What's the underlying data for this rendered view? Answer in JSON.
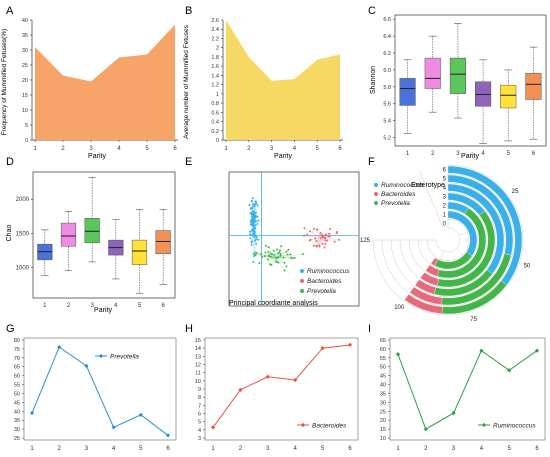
{
  "panels": {
    "A": {
      "letter": "A",
      "type": "area",
      "color": "#F7A468",
      "ylabel": "Frequency of Mummified Fetuses(%)",
      "xlabel": "Parity",
      "x": [
        1,
        2,
        3,
        4,
        5,
        6
      ],
      "values": [
        31,
        21.5,
        19.5,
        27.5,
        28.5,
        38.5
      ],
      "ylim": [
        0,
        40
      ]
    },
    "B": {
      "letter": "B",
      "type": "area",
      "color": "#F6D965",
      "ylabel": "Average number of Mummified Fetuses",
      "xlabel": "Parity",
      "x": [
        1,
        2,
        3,
        4,
        5,
        6
      ],
      "values": [
        2.6,
        1.8,
        1.28,
        1.32,
        1.74,
        1.86
      ],
      "ylim": [
        0,
        2.6
      ]
    },
    "C": {
      "letter": "C",
      "type": "boxplot",
      "ylabel": "Shannon",
      "xlabel": "Parity",
      "categories": [
        "1",
        "2",
        "3",
        "4",
        "5",
        "6"
      ],
      "yticks": [
        5.2,
        5.4,
        5.6,
        5.8,
        6.0,
        6.2,
        6.4,
        6.6
      ],
      "ylim": [
        5.1,
        6.65
      ],
      "colors": [
        "#4A72D8",
        "#EE8CE3",
        "#5CC55C",
        "#8E64B9",
        "#FFE138",
        "#F29155"
      ],
      "boxes": [
        {
          "min": 5.25,
          "q1": 5.58,
          "median": 5.78,
          "q3": 5.9,
          "max": 6.12
        },
        {
          "min": 5.5,
          "q1": 5.78,
          "median": 5.9,
          "q3": 6.14,
          "max": 6.4
        },
        {
          "min": 5.43,
          "q1": 5.72,
          "median": 5.95,
          "q3": 6.14,
          "max": 6.55
        },
        {
          "min": 5.13,
          "q1": 5.57,
          "median": 5.71,
          "q3": 5.86,
          "max": 6.12
        },
        {
          "min": 5.16,
          "q1": 5.55,
          "median": 5.7,
          "q3": 5.82,
          "max": 6.0
        },
        {
          "min": 5.18,
          "q1": 5.65,
          "median": 5.83,
          "q3": 5.96,
          "max": 6.27
        }
      ]
    },
    "D": {
      "letter": "D",
      "type": "boxplot",
      "ylabel": "Chao",
      "xlabel": "Parity",
      "categories": [
        "1",
        "2",
        "3",
        "4",
        "5",
        "6"
      ],
      "yticks": [
        1000,
        1500,
        2000
      ],
      "ylim": [
        550,
        2400
      ],
      "colors": [
        "#4A72D8",
        "#EE8CE3",
        "#5CC55C",
        "#8E64B9",
        "#FFE138",
        "#F29155"
      ],
      "boxes": [
        {
          "min": 880,
          "q1": 1110,
          "median": 1230,
          "q3": 1340,
          "max": 1550
        },
        {
          "min": 950,
          "q1": 1310,
          "median": 1460,
          "q3": 1650,
          "max": 1820
        },
        {
          "min": 1080,
          "q1": 1360,
          "median": 1530,
          "q3": 1720,
          "max": 2320
        },
        {
          "min": 830,
          "q1": 1180,
          "median": 1290,
          "q3": 1400,
          "max": 1700
        },
        {
          "min": 620,
          "q1": 1040,
          "median": 1240,
          "q3": 1400,
          "max": 1850
        },
        {
          "min": 750,
          "q1": 1200,
          "median": 1380,
          "q3": 1540,
          "max": 1850
        }
      ]
    },
    "E": {
      "letter": "E",
      "type": "scatter",
      "xlabel": "Principal coordiante analysis",
      "legend": [
        "Ruminococcus",
        "Bacteroides",
        "Prevotella"
      ],
      "colors": [
        "#3AAFE8",
        "#E56B7A",
        "#43B54A"
      ],
      "centroids": [
        [
          -0.62,
          0.22
        ],
        [
          0.42,
          0.02
        ],
        [
          -0.28,
          -0.28
        ]
      ],
      "spreads": [
        [
          0.05,
          0.38
        ],
        [
          0.28,
          0.12
        ],
        [
          0.3,
          0.16
        ]
      ],
      "counts": [
        90,
        40,
        45
      ],
      "xlim": [
        -1,
        1
      ],
      "ylim": [
        -1,
        1
      ]
    },
    "F": {
      "letter": "F",
      "type": "radial_bar",
      "title": "Enterotype",
      "legend": [
        "Ruminococcus",
        "Bacteroides",
        "Prevotella"
      ],
      "colors": [
        "#3AAFE8",
        "#E56B7A",
        "#43B54A"
      ],
      "rings": [
        "0",
        "1",
        "2",
        "3",
        "4",
        "5",
        "6"
      ],
      "ticks": [
        "25",
        "50",
        "75",
        "100",
        "125"
      ],
      "rings_data": [
        {
          "Ruminococcus": 0,
          "Bacteroides": 0,
          "Prevotella": 0
        },
        {
          "Ruminococcus": 57,
          "Bacteroides": 4,
          "Prevotella": 39
        },
        {
          "Ruminococcus": 15,
          "Bacteroides": 9,
          "Prevotella": 76
        },
        {
          "Ruminococcus": 24,
          "Bacteroides": 10.5,
          "Prevotella": 65.5
        },
        {
          "Ruminococcus": 59,
          "Bacteroides": 10,
          "Prevotella": 31
        },
        {
          "Ruminococcus": 48,
          "Bacteroides": 14,
          "Prevotella": 38
        },
        {
          "Ruminococcus": 59,
          "Bacteroides": 14.5,
          "Prevotella": 26.5
        }
      ]
    },
    "G": {
      "letter": "G",
      "type": "line",
      "series_name": "Prevotella",
      "color": "#2E8FD8",
      "x": [
        1,
        2,
        3,
        4,
        5,
        6
      ],
      "values": [
        39,
        76,
        65.5,
        31,
        38,
        26.5
      ],
      "yticks": [
        25,
        30,
        35,
        40,
        45,
        50,
        55,
        60,
        65,
        70,
        75,
        80
      ],
      "ylim": [
        25,
        80
      ]
    },
    "H": {
      "letter": "H",
      "type": "line",
      "series_name": "Bacteroides",
      "color": "#E8543F",
      "x": [
        1,
        2,
        3,
        4,
        5,
        6
      ],
      "values": [
        4.3,
        8.9,
        10.5,
        10.1,
        14,
        14.4
      ],
      "yticks": [
        3,
        4,
        5,
        6,
        7,
        8,
        9,
        10,
        11,
        12,
        13,
        14,
        15
      ],
      "ylim": [
        3,
        15
      ]
    },
    "I": {
      "letter": "I",
      "type": "line",
      "series_name": "Ruminococcus",
      "color": "#2E9E48",
      "x": [
        1,
        2,
        3,
        4,
        5,
        6
      ],
      "values": [
        57,
        15,
        24,
        59,
        48,
        59
      ],
      "yticks": [
        10,
        15,
        20,
        25,
        30,
        35,
        40,
        45,
        50,
        55,
        60,
        65
      ],
      "ylim": [
        10,
        65
      ]
    }
  }
}
